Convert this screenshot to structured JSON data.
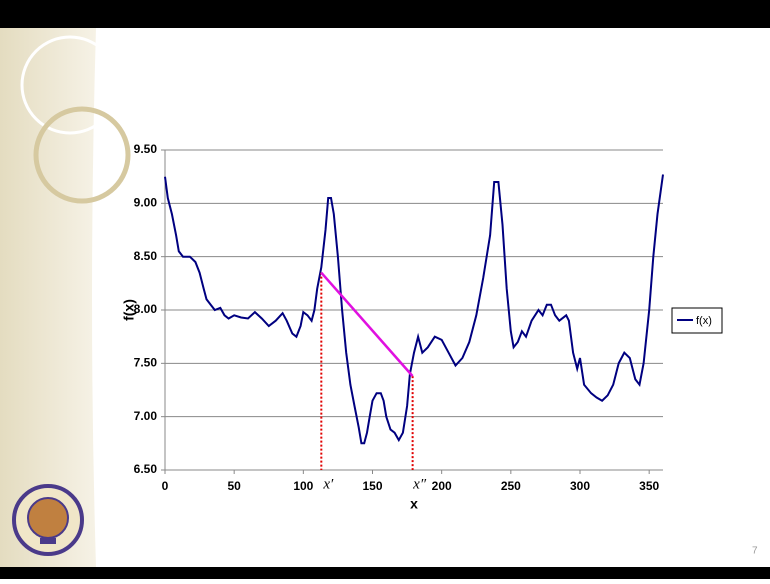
{
  "chart_data": {
    "type": "line",
    "ylabel": "f(x)",
    "xlabel": "x",
    "xlim": [
      0,
      360
    ],
    "ylim": [
      6.5,
      9.5
    ],
    "xticks": [
      0,
      50,
      100,
      150,
      200,
      250,
      300,
      350
    ],
    "yticks": [
      {
        "value": 6.5,
        "label": "6.50"
      },
      {
        "value": 7,
        "label": "7.00"
      },
      {
        "value": 7.5,
        "label": "7.50"
      },
      {
        "value": 8,
        "label": "8.00"
      },
      {
        "value": 8.5,
        "label": "8.50"
      },
      {
        "value": 9,
        "label": "9.00"
      },
      {
        "value": 9.5,
        "label": "9.50"
      }
    ],
    "grid": true,
    "legend": "right",
    "x": [
      0,
      2,
      5,
      8,
      10,
      13,
      18,
      22,
      25,
      28,
      30,
      33,
      36,
      40,
      43,
      46,
      50,
      55,
      60,
      65,
      70,
      75,
      80,
      85,
      88,
      92,
      95,
      98,
      100,
      103,
      106,
      108,
      110,
      113,
      116,
      118,
      120,
      122,
      125,
      128,
      131,
      134,
      137,
      140,
      142,
      144,
      146,
      148,
      150,
      153,
      156,
      158,
      160,
      163,
      166,
      169,
      172,
      175,
      177,
      180,
      183,
      186,
      190,
      195,
      200,
      205,
      210,
      215,
      220,
      225,
      230,
      235,
      238,
      241,
      244,
      247,
      250,
      252,
      255,
      258,
      261,
      265,
      270,
      273,
      276,
      279,
      282,
      285,
      290,
      292,
      295,
      298,
      300,
      303,
      308,
      312,
      316,
      320,
      324,
      328,
      332,
      336,
      340,
      343,
      346,
      350,
      353,
      356,
      360
    ],
    "series": [
      {
        "name": "f(x)",
        "color": "#000080",
        "values": [
          9.25,
          9.05,
          8.9,
          8.7,
          8.55,
          8.5,
          8.5,
          8.45,
          8.35,
          8.2,
          8.1,
          8.05,
          8.0,
          8.02,
          7.95,
          7.92,
          7.95,
          7.93,
          7.92,
          7.98,
          7.92,
          7.85,
          7.9,
          7.97,
          7.9,
          7.78,
          7.75,
          7.85,
          7.98,
          7.95,
          7.9,
          8.0,
          8.2,
          8.4,
          8.75,
          9.05,
          9.05,
          8.9,
          8.5,
          8.0,
          7.6,
          7.3,
          7.1,
          6.9,
          6.75,
          6.75,
          6.85,
          7.0,
          7.15,
          7.22,
          7.22,
          7.15,
          7.0,
          6.88,
          6.85,
          6.78,
          6.85,
          7.1,
          7.4,
          7.6,
          7.75,
          7.6,
          7.65,
          7.75,
          7.72,
          7.6,
          7.48,
          7.55,
          7.7,
          7.95,
          8.3,
          8.7,
          9.2,
          9.2,
          8.8,
          8.2,
          7.8,
          7.65,
          7.7,
          7.8,
          7.75,
          7.9,
          8.0,
          7.95,
          8.05,
          8.05,
          7.95,
          7.9,
          7.95,
          7.9,
          7.6,
          7.45,
          7.55,
          7.3,
          7.22,
          7.18,
          7.15,
          7.2,
          7.3,
          7.5,
          7.6,
          7.55,
          7.35,
          7.3,
          7.5,
          8.0,
          8.5,
          8.9,
          9.27
        ]
      }
    ],
    "secant": {
      "x": [
        113,
        179
      ],
      "y": [
        8.35,
        7.38
      ],
      "color": "#e010e0",
      "labels": [
        "x′",
        "x″"
      ]
    }
  },
  "page_number": "7"
}
